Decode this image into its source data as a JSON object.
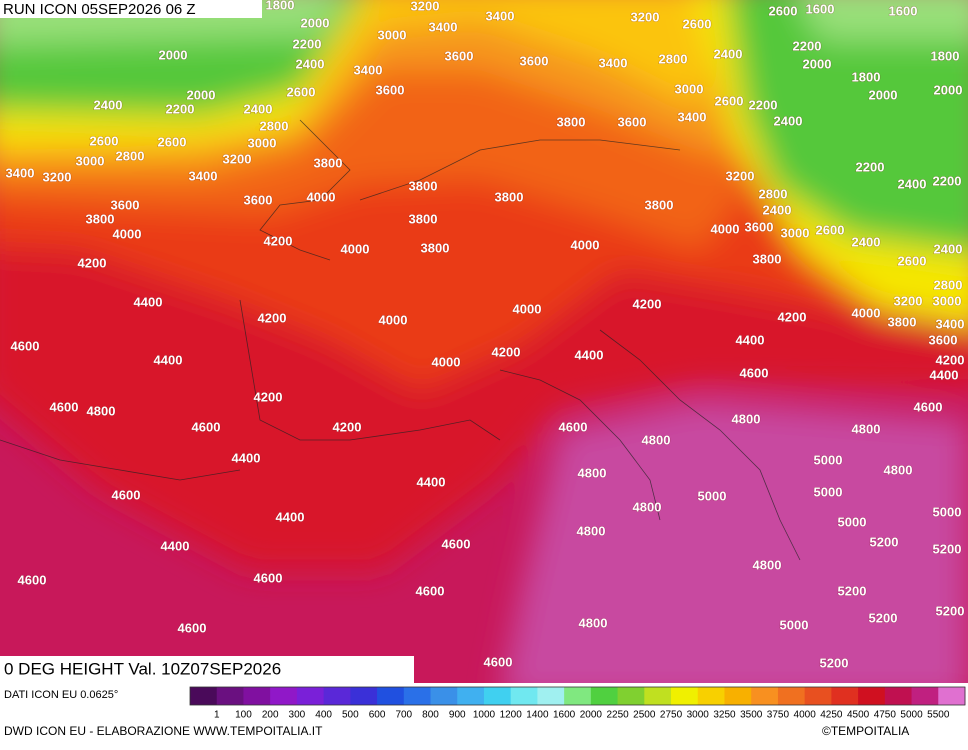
{
  "header": {
    "run": "RUN ICON 05SEP2026 06 Z"
  },
  "map": {
    "field": "0 DEG HEIGHT Val. 10Z07SEP2026",
    "contour_labels": [
      "1800",
      "3200",
      "3400",
      "3200",
      "2600",
      "2600",
      "1600",
      "1600",
      "2000",
      "3000",
      "3400",
      "2200",
      "2000",
      "2400",
      "3600",
      "3600",
      "3400",
      "2800",
      "2400",
      "2200",
      "2000",
      "1800",
      "3400",
      "1800",
      "2600",
      "3600",
      "3000",
      "2600",
      "2200",
      "2000",
      "2000",
      "2000",
      "2400",
      "2200",
      "2400",
      "2800",
      "3800",
      "3600",
      "3400",
      "2400",
      "2600",
      "2600",
      "3000",
      "2800",
      "3000",
      "3200",
      "3800",
      "2200",
      "3400",
      "3200",
      "3400",
      "3200",
      "2400",
      "2200",
      "3800",
      "4000",
      "3800",
      "2800",
      "3600",
      "3600",
      "3800",
      "2400",
      "3800",
      "3800",
      "4000",
      "3600",
      "3000",
      "2600",
      "4000",
      "4200",
      "4000",
      "3800",
      "4000",
      "2400",
      "2400",
      "3800",
      "2600",
      "4200",
      "2800",
      "4400",
      "4200",
      "3000",
      "3200",
      "4000",
      "4200",
      "4000",
      "4200",
      "4000",
      "3800",
      "3400",
      "3600",
      "4600",
      "4400",
      "4200",
      "4400",
      "4400",
      "4000",
      "4200",
      "4600",
      "4400",
      "4600",
      "4800",
      "4200",
      "4600",
      "4800",
      "4600",
      "4200",
      "4600",
      "4800",
      "4800",
      "4400",
      "5000",
      "4800",
      "4800",
      "4400",
      "4600",
      "5000",
      "5000",
      "4800",
      "5000",
      "4400",
      "5000",
      "4800",
      "4600",
      "4400",
      "5200",
      "5200",
      "4800",
      "4600",
      "4600",
      "4600",
      "5200",
      "5200",
      "5200",
      "4800",
      "5000",
      "4600",
      "4600",
      "5200"
    ]
  },
  "legend": {
    "source": "DATI ICON EU 0.0625°",
    "colors": [
      "#4a0a5a",
      "#6a1080",
      "#8010a0",
      "#9018c8",
      "#7a20d8",
      "#5a28d8",
      "#3a30d8",
      "#2050e0",
      "#2a70e8",
      "#3a90e8",
      "#40b0f0",
      "#40d0f0",
      "#70e8f0",
      "#a0f0f0",
      "#80e880",
      "#50d040",
      "#80d030",
      "#c0e020",
      "#f0f000",
      "#f8d000",
      "#f8b000",
      "#f89020",
      "#f07020",
      "#e85020",
      "#e03020",
      "#d01020",
      "#c01050",
      "#c02080",
      "#e070d0"
    ],
    "labels": [
      "1",
      "100",
      "200",
      "300",
      "400",
      "500",
      "600",
      "700",
      "800",
      "900",
      "1000",
      "1200",
      "1400",
      "1600",
      "2000",
      "2250",
      "2500",
      "2750",
      "3000",
      "3250",
      "3500",
      "3750",
      "4000",
      "4250",
      "4500",
      "4750",
      "5000",
      "5500"
    ]
  },
  "footer": {
    "credit": "DWD ICON EU - ELABORAZIONE WWW.TEMPOITALIA.IT",
    "copyright": "©TEMPOITALIA"
  }
}
